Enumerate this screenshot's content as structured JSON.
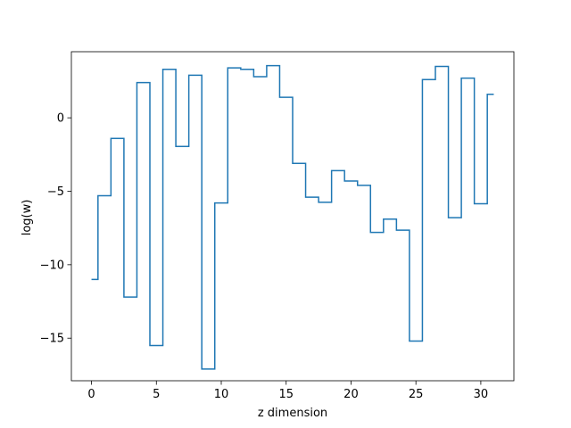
{
  "chart_data": {
    "type": "line",
    "drawstyle": "steps-mid",
    "title": "",
    "xlabel": "z dimension",
    "ylabel": "log(w)",
    "xlim": [
      -1.55,
      32.55
    ],
    "ylim": [
      -17.9,
      4.5
    ],
    "xticks": [
      0,
      5,
      10,
      15,
      20,
      25,
      30
    ],
    "xtick_labels": [
      "0",
      "5",
      "10",
      "15",
      "20",
      "25",
      "30"
    ],
    "yticks": [
      -15,
      -10,
      -5,
      0
    ],
    "ytick_labels": [
      "−15",
      "−10",
      "−5",
      "0"
    ],
    "grid": false,
    "legend": "none",
    "line_color": "#1f77b4",
    "x": [
      0,
      1,
      2,
      3,
      4,
      5,
      6,
      7,
      8,
      9,
      10,
      11,
      12,
      13,
      14,
      15,
      16,
      17,
      18,
      19,
      20,
      21,
      22,
      23,
      24,
      25,
      26,
      27,
      28,
      29,
      30,
      31
    ],
    "series": [
      {
        "values": [
          -11.0,
          -5.3,
          -1.4,
          -12.2,
          2.4,
          -15.5,
          3.3,
          -1.95,
          2.9,
          -17.1,
          -5.8,
          3.4,
          3.3,
          2.8,
          3.55,
          1.4,
          -3.1,
          -5.4,
          -5.75,
          -3.6,
          -4.3,
          -4.6,
          -7.8,
          -6.9,
          -7.65,
          -15.2,
          2.6,
          3.5,
          -6.8,
          2.7,
          -5.85,
          1.6
        ]
      }
    ]
  }
}
